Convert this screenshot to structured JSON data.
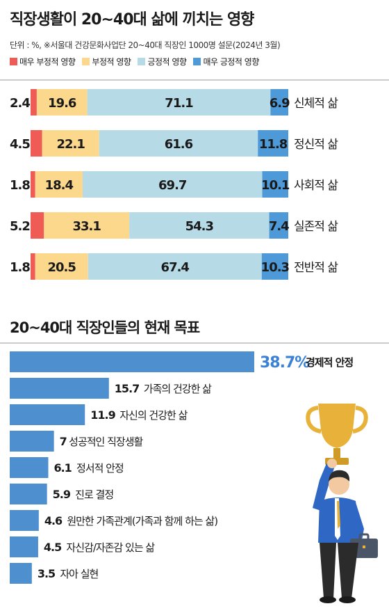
{
  "chart_data": [
    {
      "type": "bar",
      "orientation": "horizontal",
      "stacked": "percent",
      "title": "직장생활이 20~40대 삶에 끼치는 영향",
      "source": "단위 : %, ※서울대 건강문화사업단 20~40대 직장인 1000명 설문(2024년 3월)",
      "legend_position": "top-left",
      "categories": [
        "신체적 삶",
        "정신적 삶",
        "사회적 삶",
        "실존적 삶",
        "전반적 삶"
      ],
      "series": [
        {
          "name": "매우 부정적 영향",
          "color": "#ef5b55",
          "values": [
            2.4,
            4.5,
            1.8,
            5.2,
            1.8
          ]
        },
        {
          "name": "부정적 영향",
          "color": "#fcd88d",
          "values": [
            19.6,
            22.1,
            18.4,
            33.1,
            20.5
          ]
        },
        {
          "name": "긍정적 영향",
          "color": "#b6dbe7",
          "values": [
            71.1,
            61.6,
            69.7,
            54.3,
            67.4
          ]
        },
        {
          "name": "매우 긍정적 영향",
          "color": "#4e9ad8",
          "values": [
            6.9,
            11.8,
            10.1,
            7.4,
            10.3
          ]
        }
      ]
    },
    {
      "type": "bar",
      "orientation": "horizontal",
      "title": "20~40대 직장인들의 현재 목표",
      "bar_color": "#4e8fd0",
      "highlight_color": "#3b82d4",
      "categories": [
        "경제적 안정",
        "가족의 건강한 삶",
        "자신의 건강한 삶",
        "성공적인 직장생활",
        "정서적 안정",
        "진로 결정",
        "원만한 가족관계(가족과 함께 하는 삶)",
        "자신감/자존감 있는 삶",
        "자아 실현"
      ],
      "value_labels": [
        "38.7%",
        "15.7",
        "11.9",
        "7",
        "6.1",
        "5.9",
        "4.6",
        "4.5",
        "3.5"
      ],
      "values": [
        38.7,
        15.7,
        11.9,
        7,
        6.1,
        5.9,
        4.6,
        4.5,
        3.5
      ]
    }
  ],
  "illustration": {
    "icon": "businessman-holding-trophy-icon"
  }
}
